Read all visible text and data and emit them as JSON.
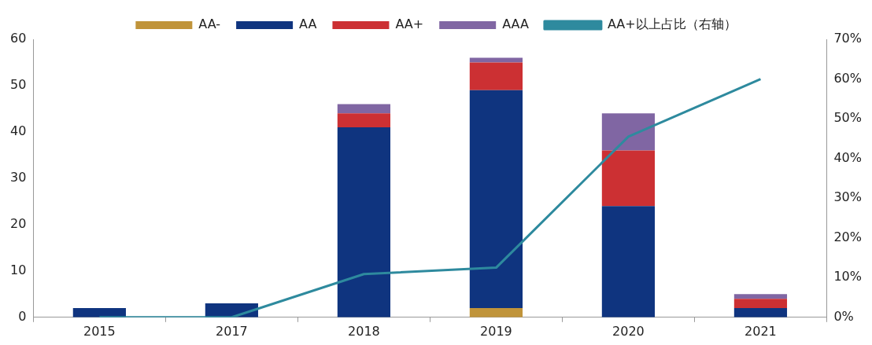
{
  "chart_data": {
    "type": "bar",
    "stacked": true,
    "categories": [
      "2015",
      "2017",
      "2018",
      "2019",
      "2020",
      "2021"
    ],
    "series": [
      {
        "name": "AA-",
        "color": "#c0943a",
        "values": [
          0,
          0,
          0,
          2,
          0,
          0
        ]
      },
      {
        "name": "AA",
        "color": "#0f347f",
        "values": [
          2,
          3,
          41,
          47,
          24,
          2
        ]
      },
      {
        "name": "AA+",
        "color": "#cc3033",
        "values": [
          0,
          0,
          3,
          6,
          12,
          2
        ]
      },
      {
        "name": "AAA",
        "color": "#8066a3",
        "values": [
          0,
          0,
          2,
          1,
          8,
          1
        ]
      },
      {
        "name": "AA+以上占比（右轴）",
        "type": "line",
        "axis": "y2",
        "color": "#2e8a9e",
        "values": [
          0,
          0,
          10.9,
          12.5,
          45.5,
          60
        ]
      }
    ],
    "ylim": [
      0,
      60
    ],
    "yticks": [
      0,
      10,
      20,
      30,
      40,
      50,
      60
    ],
    "y2lim": [
      0,
      70
    ],
    "y2ticks": [
      {
        "value": 0,
        "label": "0%"
      },
      {
        "value": 10,
        "label": "10%"
      },
      {
        "value": 20,
        "label": "20%"
      },
      {
        "value": 30,
        "label": "30%"
      },
      {
        "value": 40,
        "label": "40%"
      },
      {
        "value": 50,
        "label": "50%"
      },
      {
        "value": 60,
        "label": "60%"
      },
      {
        "value": 70,
        "label": "70%"
      }
    ],
    "grid": false,
    "legend": "top",
    "marker": "none"
  }
}
